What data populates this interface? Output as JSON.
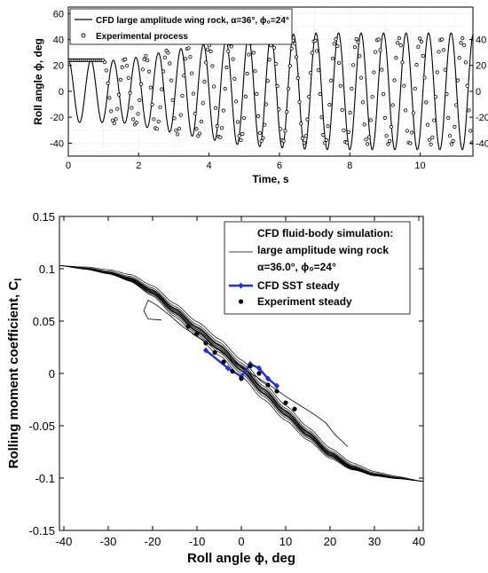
{
  "chart_data": [
    {
      "type": "line",
      "xlabel": "Time, s",
      "ylabel": "Roll angle ϕ, deg",
      "xlim": [
        0,
        11.5
      ],
      "ylim": [
        -50,
        65
      ],
      "xticks": [
        "0",
        "2",
        "4",
        "6",
        "8",
        "10"
      ],
      "yticks": [
        "-40",
        "-20",
        "0",
        "20",
        "40",
        "60"
      ],
      "yticks_right": [
        "-40",
        "-20",
        "0",
        "20",
        "40"
      ],
      "grid": true,
      "legend_position": "top-left",
      "series": [
        {
          "name": "CFD large amplitude wing rock, α=36°, ϕ₀=24°",
          "style": "solid line",
          "amplitude_envelope": {
            "t": [
              0,
              1.5,
              3,
              5,
              7,
              9,
              11.5
            ],
            "amp": [
              24,
              24,
              32,
              42,
              45,
              45,
              45
            ]
          },
          "period_s": 0.64
        },
        {
          "name": "Experimental process",
          "style": "open circles",
          "hold_value": 24,
          "hold_until_s": 1.0,
          "amplitude_envelope": {
            "t": [
              1.0,
              2,
              3,
              5,
              7,
              9,
              11.5
            ],
            "amp": [
              24,
              26,
              33,
              38,
              40,
              41,
              41
            ]
          },
          "period_s": 0.6
        }
      ]
    },
    {
      "type": "line",
      "xlabel": "Roll angle ϕ, deg",
      "ylabel": "Rolling moment coefficient, C",
      "ylabel_sub": "l",
      "xlim": [
        -41,
        41
      ],
      "ylim": [
        -0.15,
        0.15
      ],
      "xticks": [
        "-40",
        "-30",
        "-20",
        "-10",
        "0",
        "10",
        "20",
        "30",
        "40"
      ],
      "yticks": [
        "-0.15",
        "-0.1",
        "-0.05",
        "0",
        "0.05",
        "0.1",
        "0.15"
      ],
      "grid": false,
      "legend_position": "top-right",
      "legend": {
        "line1": "CFD fluid-body simulation:",
        "line2": "large amplitude wing rock",
        "line3": "α=36.0°, ϕ₀=24°",
        "sst": "CFD SST steady",
        "exp": "Experiment steady"
      },
      "series": [
        {
          "name": "CFD fluid-body simulation: large amplitude wing rock",
          "x": [
            -41,
            -35,
            -30,
            -25,
            -20,
            -15,
            -10,
            -5,
            0,
            5,
            10,
            15,
            20,
            25,
            30,
            35,
            41
          ],
          "y": [
            0.103,
            0.1,
            0.096,
            0.09,
            0.078,
            0.06,
            0.042,
            0.025,
            0.005,
            -0.017,
            -0.038,
            -0.058,
            -0.077,
            -0.09,
            -0.097,
            -0.1,
            -0.103
          ],
          "initial_transient": {
            "x": [
              24,
              23,
              21,
              19,
              16,
              13,
              10,
              7,
              4,
              1,
              -2,
              -5,
              -9,
              -13,
              -16,
              -19,
              -21,
              -22,
              -21,
              -18
            ],
            "y": [
              -0.07,
              -0.066,
              -0.058,
              -0.047,
              -0.038,
              -0.03,
              -0.022,
              -0.013,
              -0.005,
              0.003,
              0.012,
              0.022,
              0.033,
              0.044,
              0.055,
              0.065,
              0.07,
              0.06,
              0.052,
              0.051
            ]
          }
        },
        {
          "name": "CFD SST steady",
          "x": [
            -8,
            -3,
            0,
            2,
            4,
            6,
            8
          ],
          "y": [
            0.022,
            0.005,
            -0.003,
            0.009,
            0.005,
            -0.005,
            -0.012
          ]
        },
        {
          "name": "Experiment steady",
          "x": [
            -12,
            -10,
            -8,
            -6,
            -4,
            -2,
            0,
            2,
            4,
            6,
            8,
            10,
            12
          ],
          "y": [
            0.045,
            0.038,
            0.029,
            0.02,
            0.011,
            0.002,
            -0.005,
            0.007,
            0.0,
            -0.011,
            -0.017,
            -0.028,
            -0.034
          ]
        }
      ]
    }
  ]
}
